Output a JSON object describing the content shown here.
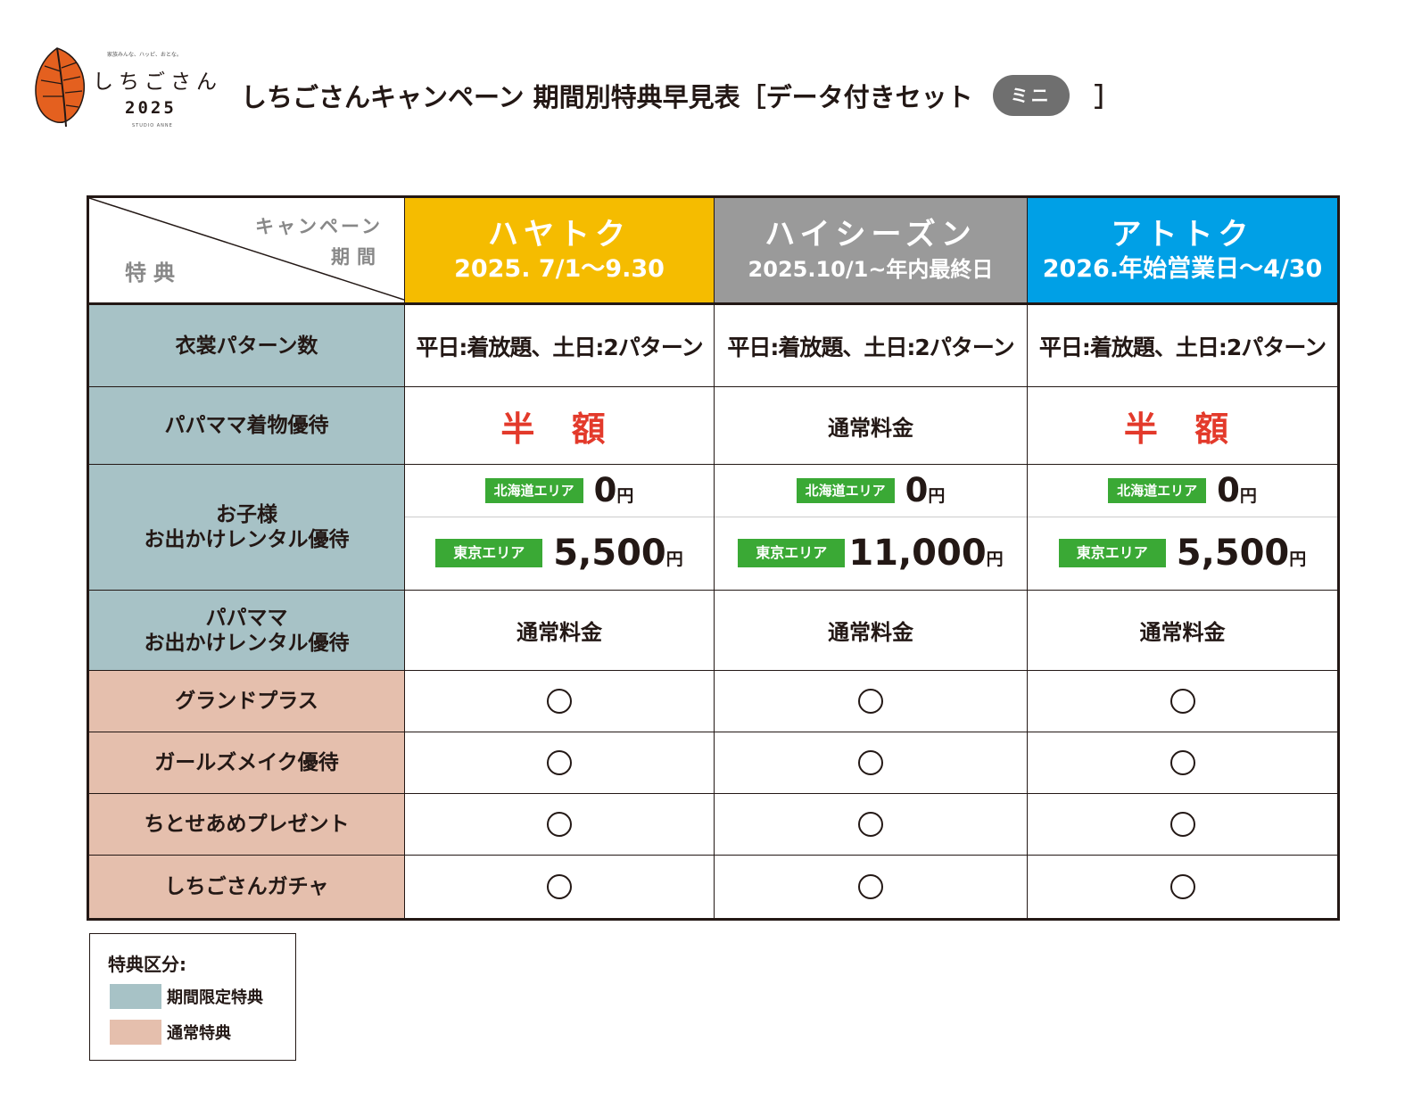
{
  "logo": {
    "tagline": "家族みんな、ハッピ、おとな。",
    "name": "しちごさん",
    "year": "2025",
    "sub": "STUDIO ANNE",
    "colors": {
      "leaf": "#e4601f",
      "vein": "#231815"
    }
  },
  "header": {
    "title": "しちごさんキャンペーン 期間別特典早見表［データ付きセット",
    "badge": "ミニ",
    "bracket_close": "］"
  },
  "table": {
    "corner": {
      "campaign": "キャンペーン",
      "period": "期間",
      "benefit": "特典"
    },
    "campaigns": [
      {
        "name": "ハヤトク",
        "period": "2025. 7/1～9.30",
        "color": "#f5bc00"
      },
      {
        "name": "ハイシーズン",
        "period": "2025.10/1~年内最終日",
        "color": "#9a9a9a"
      },
      {
        "name": "アトトク",
        "period": "2026.年始営業日～4/30",
        "color": "#00a0e6"
      }
    ],
    "rows": {
      "costume": {
        "label": "衣裳パターン数",
        "values": [
          "平日:着放題、土日:2パターン",
          "平日:着放題、土日:2パターン",
          "平日:着放題、土日:2パターン"
        ]
      },
      "parents_kimono": {
        "label": "パパママ着物優待",
        "values": [
          "半 額",
          "通常料金",
          "半 額"
        ]
      },
      "child_rental": {
        "label_line1": "お子様",
        "label_line2": "お出かけレンタル優待",
        "hokkaido_tag": "北海道エリア",
        "tokyo_tag": "東京エリア",
        "yen": "円",
        "hokkaido_values": [
          "0",
          "0",
          "0"
        ],
        "tokyo_values": [
          "5,500",
          "11,000",
          "5,500"
        ]
      },
      "parents_rental": {
        "label_line1": "パパママ",
        "label_line2": "お出かけレンタル優待",
        "values": [
          "通常料金",
          "通常料金",
          "通常料金"
        ]
      },
      "grand_plus": {
        "label": "グランドプラス",
        "values": [
          "○",
          "○",
          "○"
        ]
      },
      "girls_make": {
        "label": "ガールズメイク優待",
        "values": [
          "○",
          "○",
          "○"
        ]
      },
      "chitose": {
        "label": "ちとせあめプレゼント",
        "values": [
          "○",
          "○",
          "○"
        ]
      },
      "gacha": {
        "label": "しちごさんガチャ",
        "values": [
          "○",
          "○",
          "○"
        ]
      }
    }
  },
  "legend": {
    "title": "特典区分:",
    "items": [
      {
        "label": "期間限定特典",
        "color": "#a7c2c6"
      },
      {
        "label": "通常特典",
        "color": "#e5bfad"
      }
    ]
  }
}
